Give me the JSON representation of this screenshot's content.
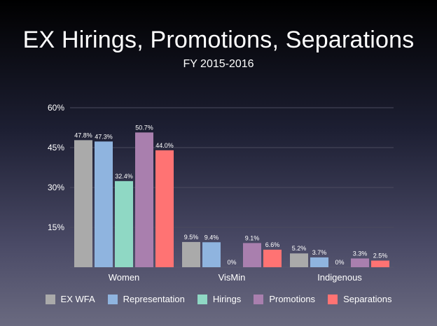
{
  "header": {
    "title": "EX Hirings, Promotions, Separations",
    "subtitle": "FY 2015-2016"
  },
  "chart_data": {
    "type": "bar",
    "title": "EX Hirings, Promotions, Separations",
    "subtitle": "FY 2015-2016",
    "categories": [
      "Women",
      "VisMin",
      "Indigenous"
    ],
    "ylim": [
      0,
      60
    ],
    "yticks": [
      15,
      30,
      45,
      60
    ],
    "ytick_labels": [
      "15%",
      "30%",
      "45%",
      "60%"
    ],
    "grid": true,
    "legend_position": "bottom",
    "series": [
      {
        "name": "EX WFA",
        "color": "#aaaaaa",
        "values": [
          47.8,
          9.5,
          5.2
        ],
        "labels": [
          "47.8%",
          "9.5%",
          "5.2%"
        ]
      },
      {
        "name": "Representation",
        "color": "#8fb4df",
        "values": [
          47.3,
          9.4,
          3.7
        ],
        "labels": [
          "47.3%",
          "9.4%",
          "3.7%"
        ]
      },
      {
        "name": "Hirings",
        "color": "#8fd8c4",
        "values": [
          32.4,
          0,
          0
        ],
        "labels": [
          "32.4%",
          "0%",
          "0%"
        ]
      },
      {
        "name": "Promotions",
        "color": "#a97fae",
        "values": [
          50.7,
          9.1,
          3.3
        ],
        "labels": [
          "50.7%",
          "9.1%",
          "3.3%"
        ]
      },
      {
        "name": "Separations",
        "color": "#ff7373",
        "values": [
          44.0,
          6.6,
          2.5
        ],
        "labels": [
          "44.0%",
          "6.6%",
          "2.5%"
        ]
      }
    ]
  }
}
